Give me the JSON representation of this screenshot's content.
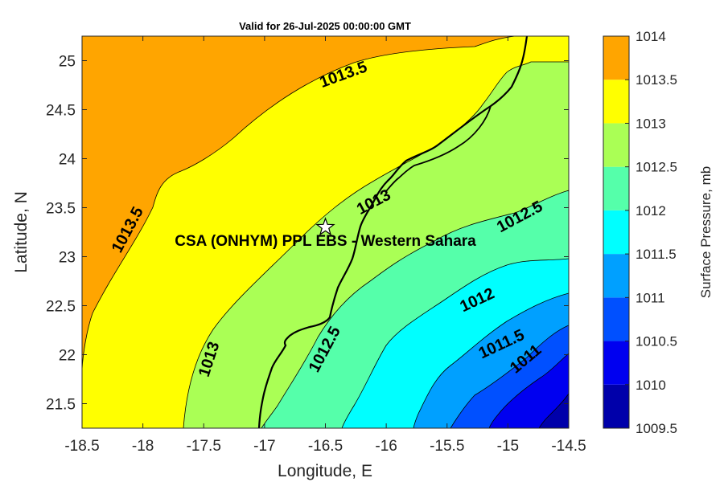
{
  "chart_data": {
    "type": "contour",
    "title": "Valid for 26-Jul-2025 00:00:00 GMT",
    "xlabel": "Longitude, E",
    "ylabel": "Latitude, N",
    "xlim": [
      -18.5,
      -14.5
    ],
    "ylim": [
      21.25,
      25.25
    ],
    "xticks": [
      "-18.5",
      "-18",
      "-17.5",
      "-17",
      "-16.5",
      "-16",
      "-15.5",
      "-15",
      "-14.5"
    ],
    "yticks": [
      "25",
      "24.5",
      "24",
      "23.5",
      "23",
      "22.5",
      "22",
      "21.5"
    ],
    "colorbar": {
      "label": "Surface Pressure, mb",
      "levels": [
        1009.5,
        1010,
        1010.5,
        1011,
        1011.5,
        1012,
        1012.5,
        1013,
        1013.5,
        1014
      ],
      "tick_labels": [
        "1014",
        "1013.5",
        "1013",
        "1012.5",
        "1012",
        "1011.5",
        "1011",
        "1010.5",
        "1010",
        "1009.5"
      ],
      "colors": [
        "#0000AA",
        "#0000F0",
        "#0050FF",
        "#00A0FF",
        "#00FFFF",
        "#55FFAA",
        "#AAFF55",
        "#FFFF00",
        "#FFA500",
        "#FF5500"
      ]
    },
    "contour_labels": [
      {
        "text": "1013.5",
        "lon": -16.35,
        "lat": 24.85
      },
      {
        "text": "1013.5",
        "lon": -18.12,
        "lat": 23.27
      },
      {
        "text": "1013",
        "lon": -16.1,
        "lat": 23.55
      },
      {
        "text": "1013",
        "lon": -17.45,
        "lat": 21.95
      },
      {
        "text": "1012.5",
        "lon": -14.9,
        "lat": 23.4
      },
      {
        "text": "1012.5",
        "lon": -16.5,
        "lat": 22.05
      },
      {
        "text": "1012",
        "lon": -15.25,
        "lat": 22.55
      },
      {
        "text": "1011.5",
        "lon": -15.05,
        "lat": 22.1
      },
      {
        "text": "1011",
        "lon": -14.85,
        "lat": 21.95
      }
    ],
    "station": {
      "name": "CSA (ONHYM) PPL EBS  - Western Sahara",
      "lon": -16.5,
      "lat": 23.3,
      "marker": "star"
    }
  }
}
